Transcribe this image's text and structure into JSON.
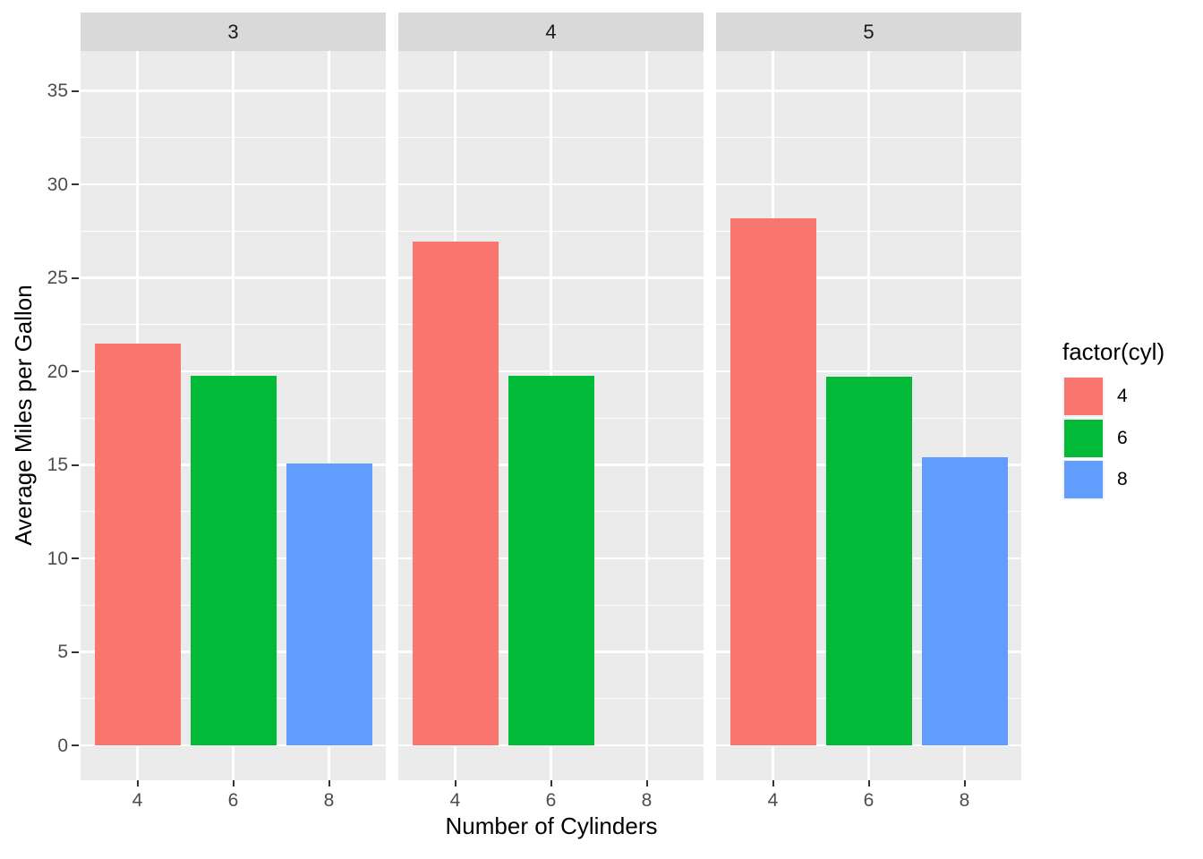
{
  "chart_data": {
    "type": "bar",
    "title": "",
    "xlabel": "Number of Cylinders",
    "ylabel": "Average Miles per Gallon",
    "facet_labels": [
      "3",
      "4",
      "5"
    ],
    "categories": [
      "4",
      "6",
      "8"
    ],
    "series_by_facet": [
      {
        "facet": "3",
        "values": [
          21.5,
          19.75,
          15.05
        ]
      },
      {
        "facet": "4",
        "values": [
          26.93,
          19.75,
          null
        ]
      },
      {
        "facet": "5",
        "values": [
          28.2,
          19.7,
          15.4
        ]
      }
    ],
    "bar_colors_by_category": [
      "#F8766D",
      "#00BA38",
      "#619CFF"
    ],
    "y_ticks": [
      0,
      5,
      10,
      15,
      20,
      25,
      30,
      35
    ],
    "y_minor_ticks": [
      2.5,
      7.5,
      12.5,
      17.5,
      22.5,
      27.5,
      32.5
    ],
    "ylim": [
      -1.9,
      37.2
    ],
    "grid": "major-and-minor-white-on-gray",
    "legend": {
      "title": "factor(cyl)",
      "position": "right",
      "entries": [
        {
          "label": "4",
          "color": "#F8766D"
        },
        {
          "label": "6",
          "color": "#00BA38"
        },
        {
          "label": "8",
          "color": "#619CFF"
        }
      ]
    }
  },
  "colors": {
    "background": "#FFFFFF",
    "panel_background": "#EBEBEB",
    "strip_background": "#D9D9D9",
    "gridline": "#FFFFFF",
    "tick_mark": "#333333",
    "axis_text": "#4D4D4D",
    "title_text": "#000000",
    "legend_key_background": "#F2F2F2"
  }
}
